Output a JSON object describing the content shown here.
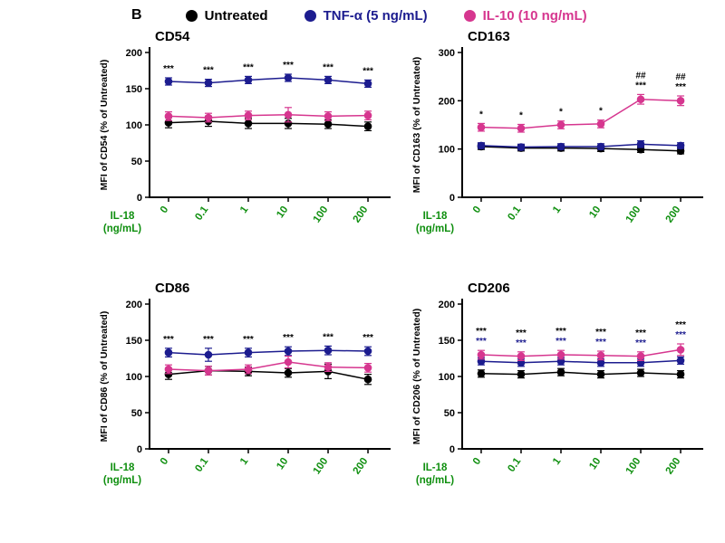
{
  "panel_label": "B",
  "axis_label_color": "#0f8f0f",
  "legend": {
    "items": [
      {
        "label": "Untreated",
        "color": "#000000"
      },
      {
        "label": "TNF-α (5 ng/mL)",
        "color": "#1c1c8f"
      },
      {
        "label": "IL-10 (10 ng/mL)",
        "color": "#d6368f"
      }
    ]
  },
  "chart_data": [
    {
      "type": "line",
      "title": "CD54",
      "ylabel": "MFI of CD54 (% of Untreated)",
      "xlabel_lines": [
        "IL-18",
        "(ng/mL)"
      ],
      "categories": [
        "0",
        "0.1",
        "1",
        "10",
        "100",
        "200"
      ],
      "ylim": [
        0,
        200
      ],
      "yticks": [
        0,
        50,
        100,
        150,
        200
      ],
      "series": [
        {
          "name": "Untreated",
          "color": "#000000",
          "values": [
            103,
            105,
            102,
            102,
            101,
            98
          ],
          "errors": [
            7,
            7,
            7,
            7,
            6,
            6
          ]
        },
        {
          "name": "TNF-α (5 ng/mL)",
          "color": "#1c1c8f",
          "values": [
            160,
            158,
            162,
            165,
            162,
            157
          ],
          "errors": [
            5,
            5,
            5,
            5,
            5,
            5
          ]
        },
        {
          "name": "IL-10 (10 ng/mL)",
          "color": "#d6368f",
          "values": [
            112,
            110,
            113,
            114,
            112,
            113
          ],
          "errors": [
            6,
            6,
            6,
            10,
            6,
            6
          ]
        }
      ],
      "annotations": [
        {
          "color": "#000000",
          "labels": [
            "***",
            "***",
            "***",
            "***",
            "***",
            "***"
          ]
        }
      ]
    },
    {
      "type": "line",
      "title": "CD163",
      "ylabel": "MFI of CD163 (% of Untreated)",
      "xlabel_lines": [
        "IL-18",
        "(ng/mL)"
      ],
      "categories": [
        "0",
        "0.1",
        "1",
        "10",
        "100",
        "200"
      ],
      "ylim": [
        0,
        300
      ],
      "yticks": [
        0,
        100,
        200,
        300
      ],
      "series": [
        {
          "name": "Untreated",
          "color": "#000000",
          "values": [
            105,
            102,
            102,
            101,
            99,
            96
          ],
          "errors": [
            6,
            6,
            6,
            6,
            6,
            6
          ]
        },
        {
          "name": "TNF-α (5 ng/mL)",
          "color": "#1c1c8f",
          "values": [
            107,
            104,
            105,
            105,
            110,
            107
          ],
          "errors": [
            6,
            6,
            6,
            6,
            7,
            6
          ]
        },
        {
          "name": "IL-10 (10 ng/mL)",
          "color": "#d6368f",
          "values": [
            145,
            143,
            150,
            152,
            203,
            200
          ],
          "errors": [
            8,
            8,
            8,
            8,
            10,
            10
          ]
        }
      ],
      "annotations": [
        {
          "color": "#000000",
          "labels": [
            "*",
            "*",
            "*",
            "*",
            "***",
            "***"
          ]
        },
        {
          "color": "#000000",
          "labels": [
            "",
            "",
            "",
            "",
            "##",
            "##"
          ]
        }
      ]
    },
    {
      "type": "line",
      "title": "CD86",
      "ylabel": "MFI of CD86 (% of Untreated)",
      "xlabel_lines": [
        "IL-18",
        "(ng/mL)"
      ],
      "categories": [
        "0",
        "0.1",
        "1",
        "10",
        "100",
        "200"
      ],
      "ylim": [
        0,
        200
      ],
      "yticks": [
        0,
        50,
        100,
        150,
        200
      ],
      "series": [
        {
          "name": "Untreated",
          "color": "#000000",
          "values": [
            103,
            108,
            107,
            105,
            107,
            96
          ],
          "errors": [
            7,
            6,
            6,
            6,
            10,
            7
          ]
        },
        {
          "name": "TNF-α (5 ng/mL)",
          "color": "#1c1c8f",
          "values": [
            133,
            130,
            133,
            135,
            136,
            135
          ],
          "errors": [
            6,
            9,
            6,
            6,
            6,
            6
          ]
        },
        {
          "name": "IL-10 (10 ng/mL)",
          "color": "#d6368f",
          "values": [
            110,
            108,
            110,
            120,
            113,
            112
          ],
          "errors": [
            6,
            6,
            6,
            8,
            6,
            6
          ]
        }
      ],
      "annotations": [
        {
          "color": "#000000",
          "labels": [
            "***",
            "***",
            "***",
            "***",
            "***",
            "***"
          ]
        }
      ]
    },
    {
      "type": "line",
      "title": "CD206",
      "ylabel": "MFI of CD206 (% of Untreated)",
      "xlabel_lines": [
        "IL-18",
        "(ng/mL)"
      ],
      "categories": [
        "0",
        "0.1",
        "1",
        "10",
        "100",
        "200"
      ],
      "ylim": [
        0,
        200
      ],
      "yticks": [
        0,
        50,
        100,
        150,
        200
      ],
      "series": [
        {
          "name": "Untreated",
          "color": "#000000",
          "values": [
            104,
            103,
            106,
            103,
            105,
            103
          ],
          "errors": [
            5,
            5,
            5,
            5,
            5,
            5
          ]
        },
        {
          "name": "TNF-α (5 ng/mL)",
          "color": "#1c1c8f",
          "values": [
            121,
            119,
            121,
            119,
            119,
            122
          ],
          "errors": [
            5,
            5,
            5,
            5,
            5,
            5
          ]
        },
        {
          "name": "IL-10 (10 ng/mL)",
          "color": "#d6368f",
          "values": [
            130,
            128,
            130,
            129,
            128,
            137
          ],
          "errors": [
            6,
            6,
            6,
            6,
            6,
            8
          ]
        }
      ],
      "annotations": [
        {
          "color": "#1c1c8f",
          "labels": [
            "***",
            "***",
            "***",
            "***",
            "***",
            "***"
          ]
        },
        {
          "color": "#000000",
          "labels": [
            "***",
            "***",
            "***",
            "***",
            "***",
            "***"
          ]
        }
      ]
    }
  ]
}
